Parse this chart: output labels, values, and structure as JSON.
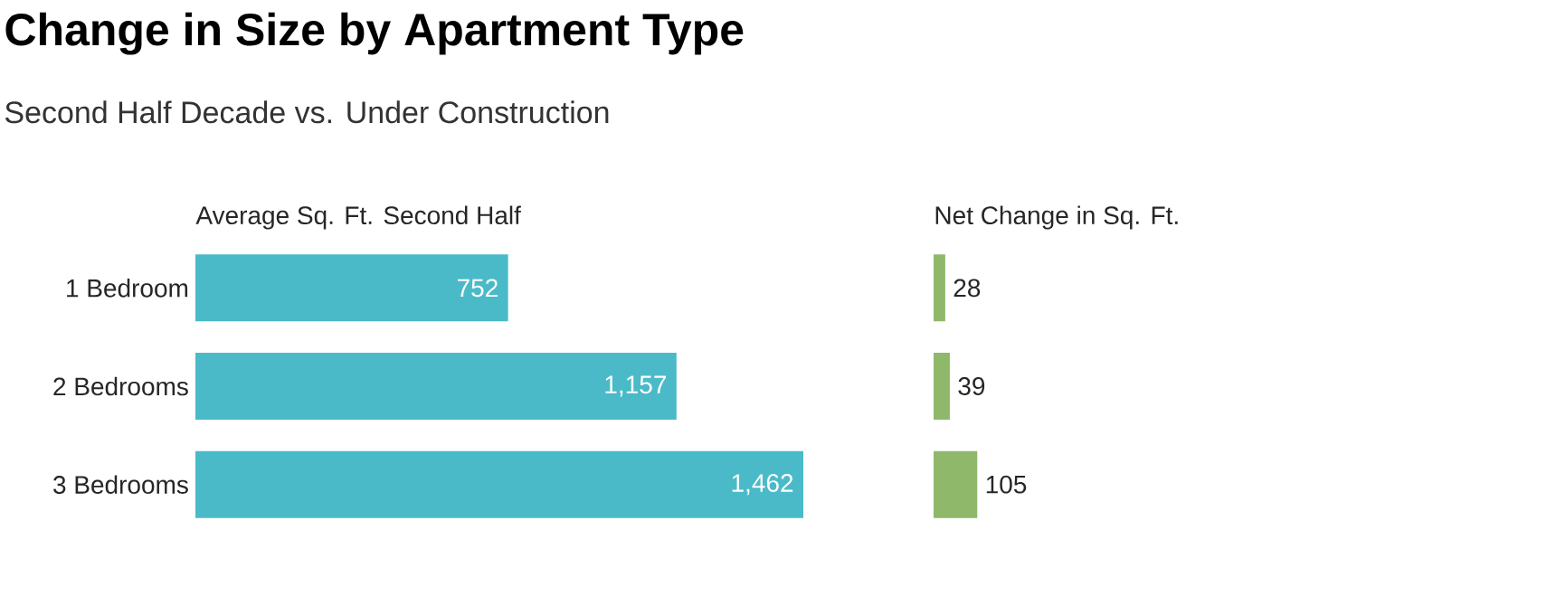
{
  "chart_data": [
    {
      "type": "bar",
      "orientation": "horizontal",
      "title": "Change in Size by Apartment Type",
      "subtitle": "Second Half Decade vs. Under Construction",
      "xlabel": "Average Sq. Ft. Second Half",
      "categories": [
        "1 Bedroom",
        "2 Bedrooms",
        "3 Bedrooms"
      ],
      "values": [
        752,
        1157,
        1462
      ],
      "value_labels": [
        "752",
        "1,157",
        "1,462"
      ],
      "color": "#4bbac8"
    },
    {
      "type": "bar",
      "orientation": "horizontal",
      "xlabel": "Net Change in Sq. Ft.",
      "categories": [
        null,
        null,
        null
      ],
      "values": [
        28,
        39,
        105
      ],
      "data_labels": true,
      "color": "#8fb86b"
    }
  ]
}
